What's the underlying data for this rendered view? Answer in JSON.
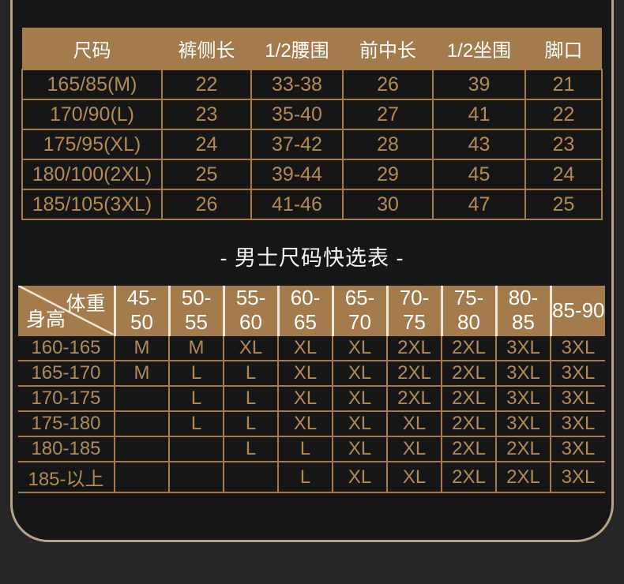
{
  "colors": {
    "outer_background": "#262626",
    "panel_background": "#161616",
    "panel_border": "#b5a48c",
    "table_accent_tan": "#a37b4d",
    "cell_text_gold": "#b18a57",
    "header_text_white": "#ffffff",
    "header_separator_cream": "#efe7da"
  },
  "size_table": {
    "headers": [
      "尺码",
      "裤侧长",
      "1/2腰围",
      "前中长",
      "1/2坐围",
      "脚口"
    ],
    "rows": [
      [
        "165/85(M)",
        "22",
        "33-38",
        "26",
        "39",
        "21"
      ],
      [
        "170/90(L)",
        "23",
        "35-40",
        "27",
        "41",
        "22"
      ],
      [
        "175/95(XL)",
        "24",
        "37-42",
        "28",
        "43",
        "23"
      ],
      [
        "180/100(2XL)",
        "25",
        "39-44",
        "29",
        "45",
        "24"
      ],
      [
        "185/105(3XL)",
        "26",
        "41-46",
        "30",
        "47",
        "25"
      ]
    ]
  },
  "section_title": "- 男士尺码快选表 -",
  "quick_table": {
    "corner_top_right": "体重",
    "corner_bottom_left": "身高",
    "weight_columns": [
      "45-50",
      "50-55",
      "55-60",
      "60-65",
      "65-70",
      "70-75",
      "75-80",
      "80-85",
      "85-90"
    ],
    "rows": [
      {
        "height": "160-165",
        "sizes": [
          "M",
          "M",
          "XL",
          "XL",
          "XL",
          "2XL",
          "2XL",
          "3XL",
          "3XL"
        ]
      },
      {
        "height": "165-170",
        "sizes": [
          "M",
          "L",
          "L",
          "XL",
          "XL",
          "2XL",
          "2XL",
          "3XL",
          "3XL"
        ]
      },
      {
        "height": "170-175",
        "sizes": [
          "",
          "L",
          "L",
          "XL",
          "XL",
          "2XL",
          "2XL",
          "3XL",
          "3XL"
        ]
      },
      {
        "height": "175-180",
        "sizes": [
          "",
          "L",
          "L",
          "XL",
          "XL",
          "XL",
          "2XL",
          "3XL",
          "3XL"
        ]
      },
      {
        "height": "180-185",
        "sizes": [
          "",
          "",
          "L",
          "L",
          "XL",
          "XL",
          "2XL",
          "2XL",
          "3XL"
        ]
      },
      {
        "height": "185-以上",
        "sizes": [
          "",
          "",
          "",
          "L",
          "XL",
          "XL",
          "2XL",
          "2XL",
          "3XL"
        ]
      }
    ]
  }
}
